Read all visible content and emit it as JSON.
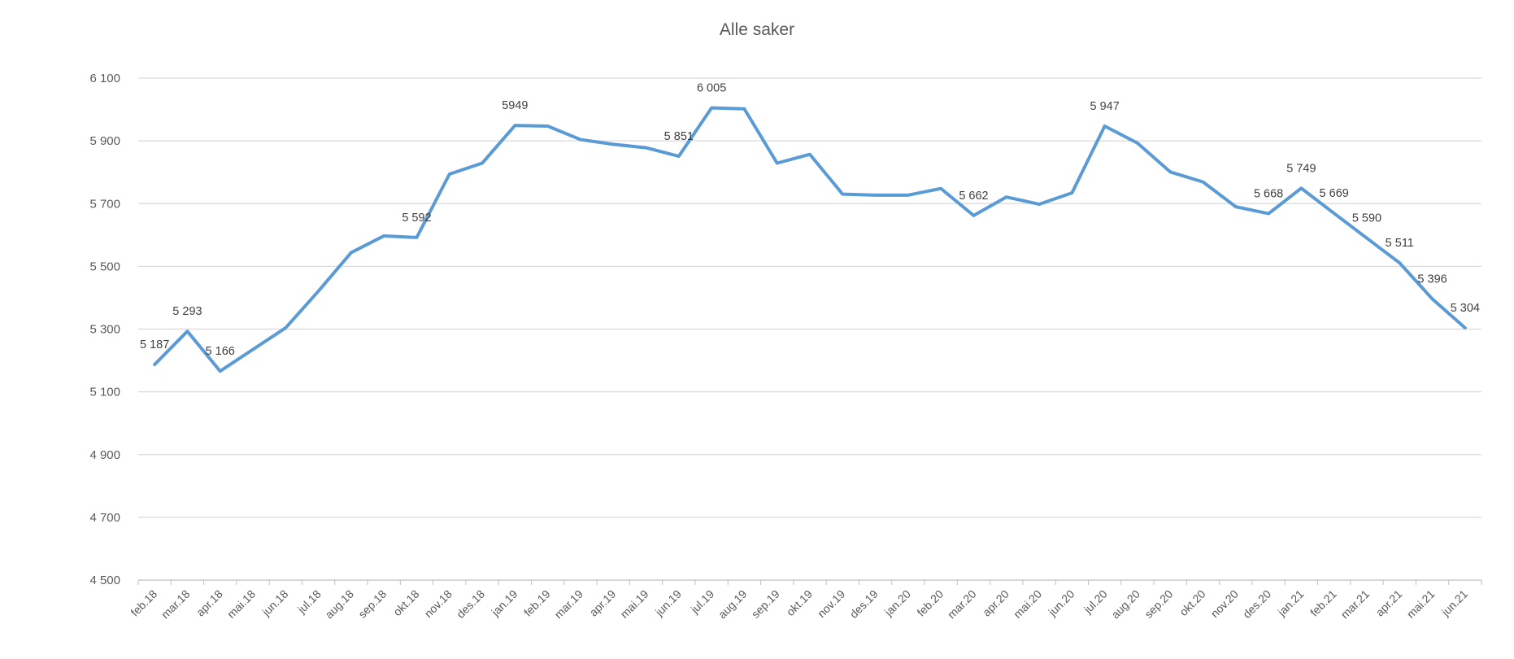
{
  "chart_data": {
    "type": "line",
    "title": "Alle saker",
    "xlabel": "",
    "ylabel": "",
    "ylim": [
      4500,
      6100
    ],
    "ytick_values": [
      4500,
      4700,
      4900,
      5100,
      5300,
      5500,
      5700,
      5900,
      6100
    ],
    "ytick_labels": [
      "4 500",
      "4 700",
      "4 900",
      "5 100",
      "5 300",
      "5 500",
      "5 700",
      "5 900",
      "6 100"
    ],
    "grid": true,
    "legend": "none",
    "color": "#5b9bd5",
    "categories": [
      "feb.18",
      "mar.18",
      "apr.18",
      "mai.18",
      "jun.18",
      "jul.18",
      "aug.18",
      "sep.18",
      "okt.18",
      "nov.18",
      "des.18",
      "jan.19",
      "feb.19",
      "mar.19",
      "apr.19",
      "mai.19",
      "jun.19",
      "jul.19",
      "aug.19",
      "sep.19",
      "okt.19",
      "nov.19",
      "des.19",
      "jan.20",
      "feb.20",
      "mar.20",
      "apr.20",
      "mai.20",
      "jun.20",
      "jul.20",
      "aug.20",
      "sep.20",
      "okt.20",
      "nov.20",
      "des.20",
      "jan.21",
      "feb.21",
      "mar.21",
      "apr.21",
      "mai.21",
      "jun.21"
    ],
    "series": [
      {
        "values": [
          5187,
          5293,
          5166,
          5235,
          5304,
          5421,
          5544,
          5597,
          5592,
          5794,
          5829,
          5949,
          5947,
          5904,
          5889,
          5878,
          5851,
          6005,
          6002,
          5829,
          5857,
          5730,
          5727,
          5727,
          5748,
          5662,
          5721,
          5698,
          5734,
          5947,
          5893,
          5801,
          5769,
          5690,
          5668,
          5749,
          5669,
          5590,
          5511,
          5396,
          5304
        ]
      }
    ],
    "data_labels": [
      {
        "index": 0,
        "text": "5 187"
      },
      {
        "index": 1,
        "text": "5 293"
      },
      {
        "index": 2,
        "text": "5 166"
      },
      {
        "index": 8,
        "text": "5 592"
      },
      {
        "index": 11,
        "text": "5949"
      },
      {
        "index": 16,
        "text": "5 851"
      },
      {
        "index": 17,
        "text": "6 005"
      },
      {
        "index": 25,
        "text": "5 662"
      },
      {
        "index": 29,
        "text": "5 947"
      },
      {
        "index": 34,
        "text": "5 668"
      },
      {
        "index": 35,
        "text": "5 749"
      },
      {
        "index": 36,
        "text": "5 669"
      },
      {
        "index": 37,
        "text": "5 590"
      },
      {
        "index": 38,
        "text": "5 511"
      },
      {
        "index": 39,
        "text": "5 396"
      },
      {
        "index": 40,
        "text": "5 304"
      }
    ]
  }
}
